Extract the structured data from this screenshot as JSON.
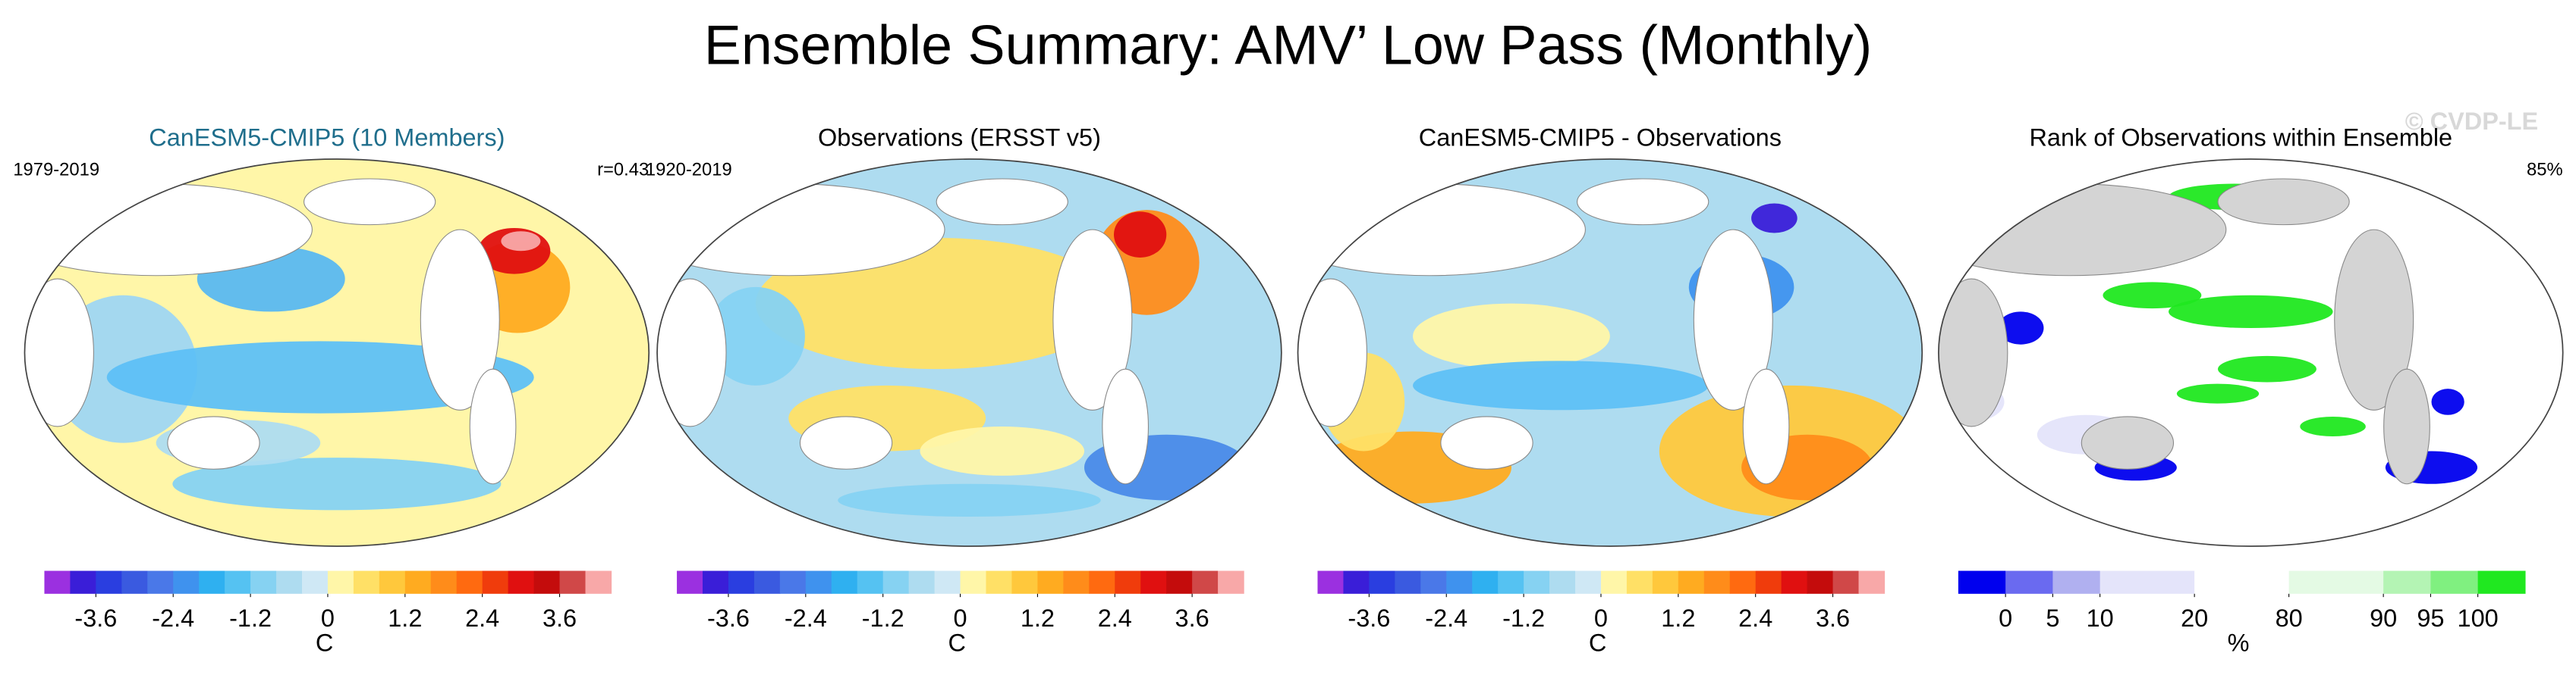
{
  "title": "Ensemble Summary: AMV’ Low Pass (Monthly)",
  "watermark": "© CVDP-LE",
  "panels": [
    {
      "title": "CanESM5-CMIP5 (10 Members)",
      "title_color": "#1f6e8c",
      "left_label": "1979-2019",
      "right_label": "r=0.43",
      "colorbar": {
        "colors": [
          "#9b30e0",
          "#3a1ed8",
          "#2a3ee0",
          "#3a5ae0",
          "#4a78e8",
          "#3f92ee",
          "#2fb0f0",
          "#55c2f2",
          "#86d2f2",
          "#aedcf0",
          "#cfe8f5",
          "#fff6a8",
          "#ffe066",
          "#ffc83c",
          "#ffab20",
          "#ff8c1a",
          "#ff6a10",
          "#f03c0c",
          "#e01010",
          "#c40c0c",
          "#d04848",
          "#f8a8a8"
        ],
        "lim": [
          -4.4,
          4.4
        ],
        "ticks": [
          -3.6,
          -2.4,
          -1.2,
          0,
          1.2,
          2.4,
          3.6
        ],
        "label": "C"
      }
    },
    {
      "title": "Observations (ERSST v5)",
      "title_color": "#000000",
      "left_label": "1920-2019",
      "colorbar": {
        "colors": [
          "#9b30e0",
          "#3a1ed8",
          "#2a3ee0",
          "#3a5ae0",
          "#4a78e8",
          "#3f92ee",
          "#2fb0f0",
          "#55c2f2",
          "#86d2f2",
          "#aedcf0",
          "#cfe8f5",
          "#fff6a8",
          "#ffe066",
          "#ffc83c",
          "#ffab20",
          "#ff8c1a",
          "#ff6a10",
          "#f03c0c",
          "#e01010",
          "#c40c0c",
          "#d04848",
          "#f8a8a8"
        ],
        "lim": [
          -4.4,
          4.4
        ],
        "ticks": [
          -3.6,
          -2.4,
          -1.2,
          0,
          1.2,
          2.4,
          3.6
        ],
        "label": "C"
      }
    },
    {
      "title": "CanESM5-CMIP5 - Observations",
      "title_color": "#000000",
      "colorbar": {
        "colors": [
          "#9b30e0",
          "#3a1ed8",
          "#2a3ee0",
          "#3a5ae0",
          "#4a78e8",
          "#3f92ee",
          "#2fb0f0",
          "#55c2f2",
          "#86d2f2",
          "#aedcf0",
          "#cfe8f5",
          "#fff6a8",
          "#ffe066",
          "#ffc83c",
          "#ffab20",
          "#ff8c1a",
          "#ff6a10",
          "#f03c0c",
          "#e01010",
          "#c40c0c",
          "#d04848",
          "#f8a8a8"
        ],
        "lim": [
          -4.4,
          4.4
        ],
        "ticks": [
          -3.6,
          -2.4,
          -1.2,
          0,
          1.2,
          2.4,
          3.6
        ],
        "label": "C"
      }
    },
    {
      "title": "Rank of Observations within Ensemble",
      "title_color": "#000000",
      "right_label": "85%",
      "colorbar": {
        "colors": [
          "#0000ee",
          "#6a6af0",
          "#b0b0f0",
          "#e4e4fa",
          "#ffffff",
          "#e4fae4",
          "#b4f4b4",
          "#80f080",
          "#20e820"
        ],
        "ticks": [
          0,
          5,
          10,
          20,
          80,
          90,
          95,
          100
        ],
        "label": "%"
      }
    }
  ]
}
